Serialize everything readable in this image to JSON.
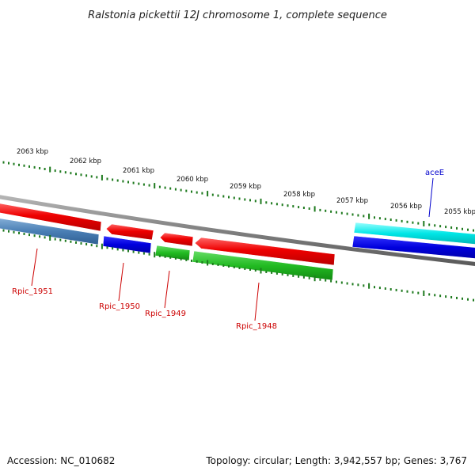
{
  "title": "Ralstonia pickettii 12J chromosome 1, complete sequence",
  "footer": {
    "accession": "Accession: NC_010682",
    "summary": "Topology: circular; Length: 3,942,557 bp; Genes: 3,767"
  },
  "colors": {
    "backbone": "#8a8a8a",
    "tick": "#1e7a1e",
    "label_red": "#cc0000",
    "label_blue": "#0000cc",
    "feature_red": "#ee0000",
    "feature_blue": "#0000dd",
    "feature_steelblue": "#4a7fb5",
    "feature_green": "#22bb22",
    "feature_cyan": "#00e6e6"
  },
  "scale_labels": [
    {
      "id": "kbp-2063",
      "text": "2063 kbp"
    },
    {
      "id": "kbp-2062",
      "text": "2062 kbp"
    },
    {
      "id": "kbp-2061",
      "text": "2061 kbp"
    },
    {
      "id": "kbp-2060",
      "text": "2060 kbp"
    },
    {
      "id": "kbp-2059",
      "text": "2059 kbp"
    },
    {
      "id": "kbp-2058",
      "text": "2058 kbp"
    },
    {
      "id": "kbp-2057",
      "text": "2057 kbp"
    },
    {
      "id": "kbp-2056",
      "text": "2056 kbp"
    },
    {
      "id": "kbp-2055",
      "text": "2055 kbp"
    }
  ],
  "gene_labels": [
    {
      "id": "rpic-1951",
      "text": "Rpic_1951",
      "color": "red"
    },
    {
      "id": "rpic-1950",
      "text": "Rpic_1950",
      "color": "red"
    },
    {
      "id": "rpic-1949",
      "text": "Rpic_1949",
      "color": "red"
    },
    {
      "id": "rpic-1948",
      "text": "Rpic_1948",
      "color": "red"
    },
    {
      "id": "acee",
      "text": "aceE",
      "color": "blue"
    }
  ]
}
